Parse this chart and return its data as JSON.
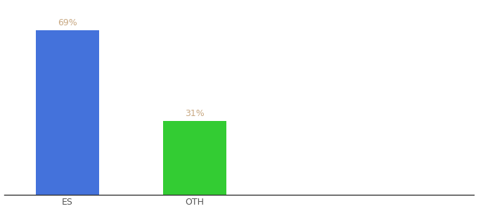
{
  "categories": [
    "ES",
    "OTH"
  ],
  "values": [
    69,
    31
  ],
  "bar_colors": [
    "#4472db",
    "#33cc33"
  ],
  "label_color": "#c8a882",
  "label_fontsize": 9,
  "xlabel_fontsize": 9,
  "xlabel_color": "#555555",
  "background_color": "#ffffff",
  "ylim": [
    0,
    80
  ],
  "bar_width": 0.5
}
